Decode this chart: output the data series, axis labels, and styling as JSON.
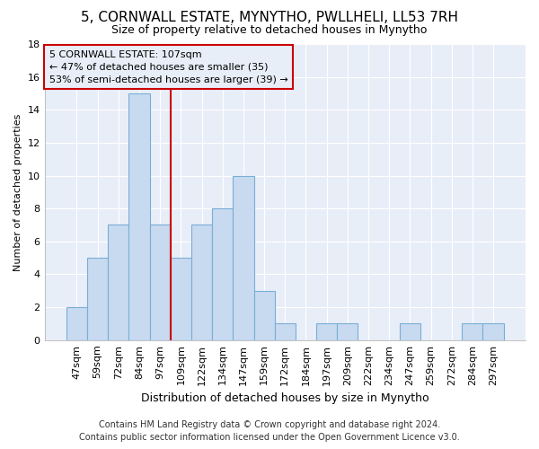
{
  "title1": "5, CORNWALL ESTATE, MYNYTHO, PWLLHELI, LL53 7RH",
  "title2": "Size of property relative to detached houses in Mynytho",
  "xlabel": "Distribution of detached houses by size in Mynytho",
  "ylabel": "Number of detached properties",
  "footer1": "Contains HM Land Registry data © Crown copyright and database right 2024.",
  "footer2": "Contains public sector information licensed under the Open Government Licence v3.0.",
  "categories": [
    "47sqm",
    "59sqm",
    "72sqm",
    "84sqm",
    "97sqm",
    "109sqm",
    "122sqm",
    "134sqm",
    "147sqm",
    "159sqm",
    "172sqm",
    "184sqm",
    "197sqm",
    "209sqm",
    "222sqm",
    "234sqm",
    "247sqm",
    "259sqm",
    "272sqm",
    "284sqm",
    "297sqm"
  ],
  "values": [
    2,
    5,
    7,
    15,
    7,
    5,
    7,
    8,
    10,
    3,
    1,
    0,
    1,
    1,
    0,
    0,
    1,
    0,
    0,
    1,
    1
  ],
  "bar_color": "#c8daf0",
  "bar_edge_color": "#7aaed6",
  "background_color": "#ffffff",
  "plot_bg_color": "#e8eef8",
  "grid_color": "#ffffff",
  "redline_color": "#cc0000",
  "annotation_box_color": "#cc0000",
  "annotation_line1": "5 CORNWALL ESTATE: 107sqm",
  "annotation_line2": "← 47% of detached houses are smaller (35)",
  "annotation_line3": "53% of semi-detached houses are larger (39) →",
  "ylim": [
    0,
    18
  ],
  "yticks": [
    0,
    2,
    4,
    6,
    8,
    10,
    12,
    14,
    16,
    18
  ],
  "title1_fontsize": 11,
  "title2_fontsize": 9,
  "xlabel_fontsize": 9,
  "ylabel_fontsize": 8,
  "tick_fontsize": 8,
  "footer_fontsize": 7,
  "annot_fontsize": 8
}
